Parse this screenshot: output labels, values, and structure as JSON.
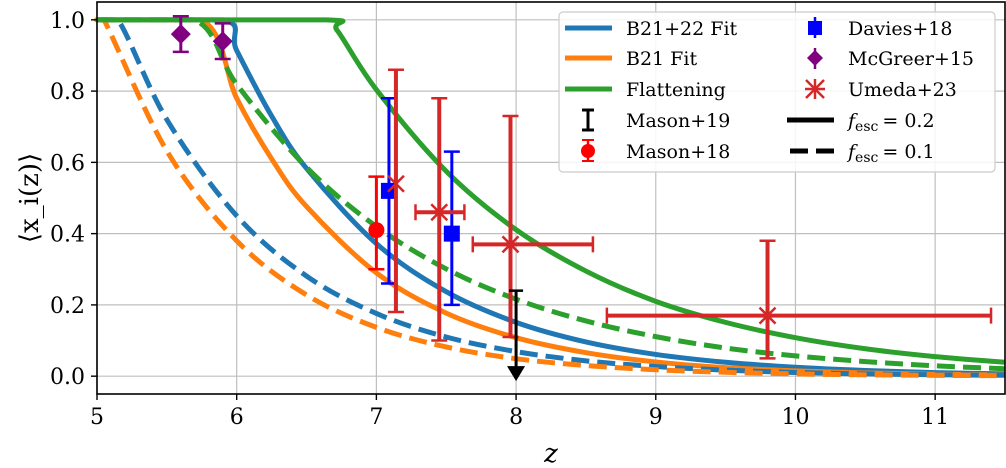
{
  "chart_data": {
    "type": "line",
    "xlabel": "z",
    "ylabel": "⟨x_i(z)⟩",
    "ylabel_parts": {
      "open": "⟨",
      "x": "x",
      "sub": "i",
      "rest": "(z)⟩"
    },
    "xlim": [
      5,
      11.5
    ],
    "ylim": [
      -0.05,
      1.05
    ],
    "xticks": [
      "5",
      "6",
      "7",
      "8",
      "9",
      "10",
      "11"
    ],
    "yticks": [
      "0.0",
      "0.2",
      "0.4",
      "0.6",
      "0.8",
      "1.0"
    ],
    "grid": true,
    "legend_placement": "top-right",
    "colors": {
      "blue": "#1f77b4",
      "orange": "#ff7f0e",
      "green": "#2ca02c",
      "umeda": "#d62728",
      "mason18": "#ff0000",
      "davies": "#0000ff",
      "mcgreer": "#800080",
      "mason19": "#000000"
    },
    "series": [
      {
        "name": "B21+22 Fit",
        "f_esc": 0.2,
        "color": "#1f77b4",
        "style": "solid",
        "x": [
          5,
          5.9,
          6.0,
          6.25,
          6.5,
          7,
          7.5,
          8,
          8.5,
          9,
          9.5,
          10,
          10.5,
          11,
          11.5
        ],
        "y": [
          1,
          1,
          0.914,
          0.73,
          0.583,
          0.372,
          0.237,
          0.151,
          0.096,
          0.061,
          0.039,
          0.025,
          0.016,
          0.01,
          0.0065
        ]
      },
      {
        "name": "B21 Fit",
        "f_esc": 0.2,
        "color": "#ff7f0e",
        "style": "solid",
        "x": [
          5,
          5.75,
          6.0,
          6.25,
          6.5,
          7,
          7.5,
          8,
          8.5,
          9,
          9.5,
          10,
          10.5,
          11,
          11.5
        ],
        "y": [
          1,
          1,
          0.78,
          0.61,
          0.476,
          0.29,
          0.177,
          0.108,
          0.066,
          0.04,
          0.024,
          0.015,
          0.009,
          0.0055,
          0.0034
        ]
      },
      {
        "name": "Flattening",
        "f_esc": 0.2,
        "color": "#2ca02c",
        "style": "solid",
        "x": [
          5,
          6.62,
          6.72,
          7,
          7.5,
          8,
          8.5,
          9,
          9.5,
          10,
          10.5,
          11,
          11.5
        ],
        "y": [
          1,
          1,
          0.97,
          0.804,
          0.575,
          0.411,
          0.295,
          0.21,
          0.151,
          0.108,
          0.077,
          0.055,
          0.039
        ]
      },
      {
        "name": "B21+22 Fit",
        "f_esc": 0.1,
        "color": "#1f77b4",
        "style": "dashed",
        "x": [
          5,
          5.15,
          5.5,
          6,
          6.5,
          7,
          7.5,
          8,
          8.5,
          9,
          9.5,
          10,
          10.5,
          11,
          11.5
        ],
        "y": [
          1,
          1,
          0.72,
          0.45,
          0.281,
          0.176,
          0.11,
          0.069,
          0.043,
          0.027,
          0.017,
          0.0105,
          0.0065,
          0.004,
          0.0025
        ]
      },
      {
        "name": "B21 Fit",
        "f_esc": 0.1,
        "color": "#ff7f0e",
        "style": "dashed",
        "x": [
          5,
          5.05,
          5.5,
          6,
          6.5,
          7,
          7.5,
          8,
          8.5,
          9,
          9.5,
          10,
          10.5,
          11,
          11.5
        ],
        "y": [
          1,
          1,
          0.632,
          0.38,
          0.228,
          0.137,
          0.082,
          0.049,
          0.03,
          0.018,
          0.011,
          0.0064,
          0.0038,
          0.0023,
          0.0014
        ]
      },
      {
        "name": "Flattening",
        "f_esc": 0.1,
        "color": "#2ca02c",
        "style": "dashed",
        "x": [
          5,
          5.7,
          6,
          6.5,
          7,
          7.5,
          8,
          8.5,
          9,
          9.5,
          10,
          10.5,
          11,
          11.5
        ],
        "y": [
          1,
          1,
          0.819,
          0.586,
          0.42,
          0.301,
          0.216,
          0.155,
          0.111,
          0.079,
          0.057,
          0.041,
          0.029,
          0.021
        ]
      }
    ],
    "observations": [
      {
        "name": "McGreer+15",
        "marker": "diamond",
        "color": "#800080",
        "points": [
          {
            "x": 5.6,
            "y": 0.96,
            "ylo": 0.91,
            "yhi": 1.01
          },
          {
            "x": 5.9,
            "y": 0.94,
            "ylo": 0.89,
            "yhi": 0.99
          }
        ]
      },
      {
        "name": "Mason+18",
        "marker": "circle",
        "color": "#ff0000",
        "points": [
          {
            "x": 7.0,
            "y": 0.41,
            "ylo": 0.3,
            "yhi": 0.56
          }
        ]
      },
      {
        "name": "Davies+18",
        "marker": "square",
        "color": "#0000ff",
        "points": [
          {
            "x": 7.09,
            "y": 0.52,
            "ylo": 0.26,
            "yhi": 0.78
          },
          {
            "x": 7.54,
            "y": 0.4,
            "ylo": 0.2,
            "yhi": 0.63
          }
        ]
      },
      {
        "name": "Umeda+23",
        "marker": "x",
        "color": "#d62728",
        "points": [
          {
            "x": 7.14,
            "y": 0.54,
            "ylo": 0.18,
            "yhi": 0.86
          },
          {
            "x": 7.45,
            "y": 0.46,
            "xlo": 7.28,
            "xhi": 7.63,
            "ylo": 0.1,
            "yhi": 0.78
          },
          {
            "x": 7.96,
            "y": 0.37,
            "xlo": 7.69,
            "xhi": 8.55,
            "ylo": 0.11,
            "yhi": 0.73
          },
          {
            "x": 9.8,
            "y": 0.17,
            "xlo": 8.65,
            "xhi": 11.4,
            "ylo": 0.05,
            "yhi": 0.38
          }
        ]
      },
      {
        "name": "Mason+19",
        "marker": "upper-limit",
        "color": "#000000",
        "points": [
          {
            "x": 8.0,
            "y": 0.24,
            "ylo": 0.0
          }
        ]
      }
    ],
    "legend": {
      "col1": [
        "B21+22 Fit",
        "B21 Fit",
        "Flattening",
        "Mason+19",
        "Mason+18"
      ],
      "col2": [
        "Davies+18",
        "McGreer+15",
        "Umeda+23"
      ],
      "fesc_symbol": "f",
      "fesc_sub": "esc",
      "fesc_solid": "= 0.2",
      "fesc_dashed": "= 0.1"
    }
  }
}
